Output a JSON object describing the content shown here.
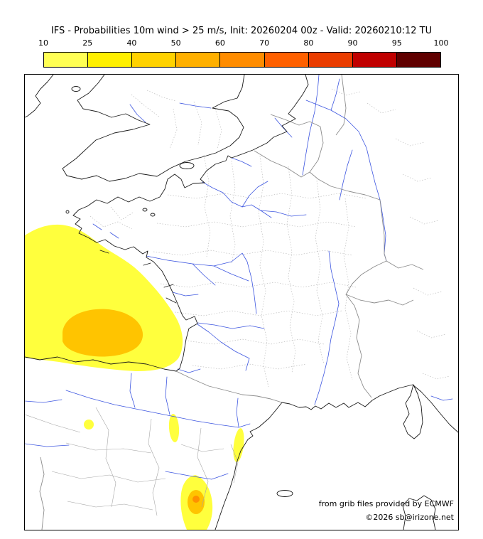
{
  "header": {
    "title": "IFS - Probabilities 10m wind > 25 m/s, Init: 20260204 00z - Valid: 20260210:12 TU"
  },
  "legend": {
    "tick_labels": [
      "10",
      "25",
      "40",
      "50",
      "60",
      "70",
      "80",
      "90",
      "95",
      "100"
    ],
    "segment_colors": [
      "#ffff54",
      "#fff000",
      "#ffd200",
      "#ffb000",
      "#ff8c00",
      "#ff6000",
      "#ea3c00",
      "#c00000",
      "#600000"
    ]
  },
  "map": {
    "credit_line1": "from grib files provided by ECMWF",
    "credit_line2": "©2026 sb@irizone.net",
    "colors": {
      "coast": "#1a1a1a",
      "river": "#3d56e0",
      "admin": "#b3b3b3",
      "country": "#8c8c8c",
      "province": "#a6a6a6",
      "prob_low": "#ffff3d",
      "prob_mid": "#ffc400",
      "prob_high": "#ff9000"
    }
  }
}
